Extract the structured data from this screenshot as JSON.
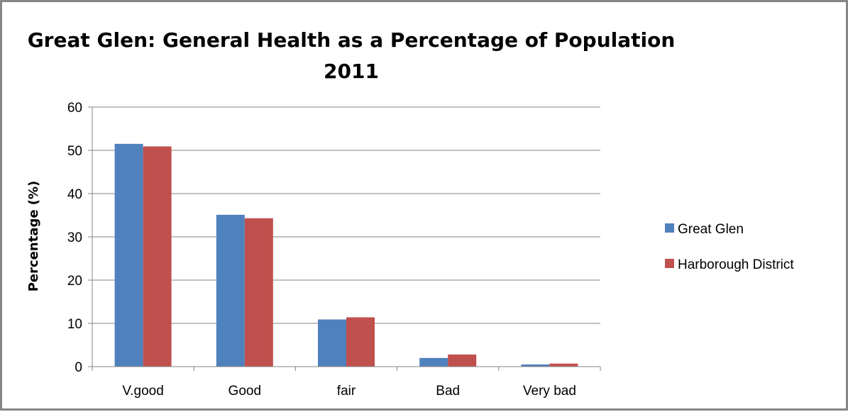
{
  "chart_data": {
    "type": "bar",
    "title_lines": [
      "Great Glen: General Health as a Percentage of Population",
      "2011"
    ],
    "xlabel": "",
    "ylabel": "Percentage (%)",
    "ylim": [
      0,
      60
    ],
    "yticks": [
      0,
      10,
      20,
      30,
      40,
      50,
      60
    ],
    "categories": [
      "V.good",
      "Good",
      "fair",
      "Bad",
      "Very bad"
    ],
    "series": [
      {
        "name": "Great Glen",
        "color": "#4F81BD",
        "values": [
          51.5,
          35.1,
          10.9,
          2.0,
          0.5
        ]
      },
      {
        "name": "Harborough District",
        "color": "#C0504D",
        "values": [
          50.9,
          34.3,
          11.4,
          2.8,
          0.7
        ]
      }
    ],
    "grid": true,
    "legend_position": "right"
  }
}
